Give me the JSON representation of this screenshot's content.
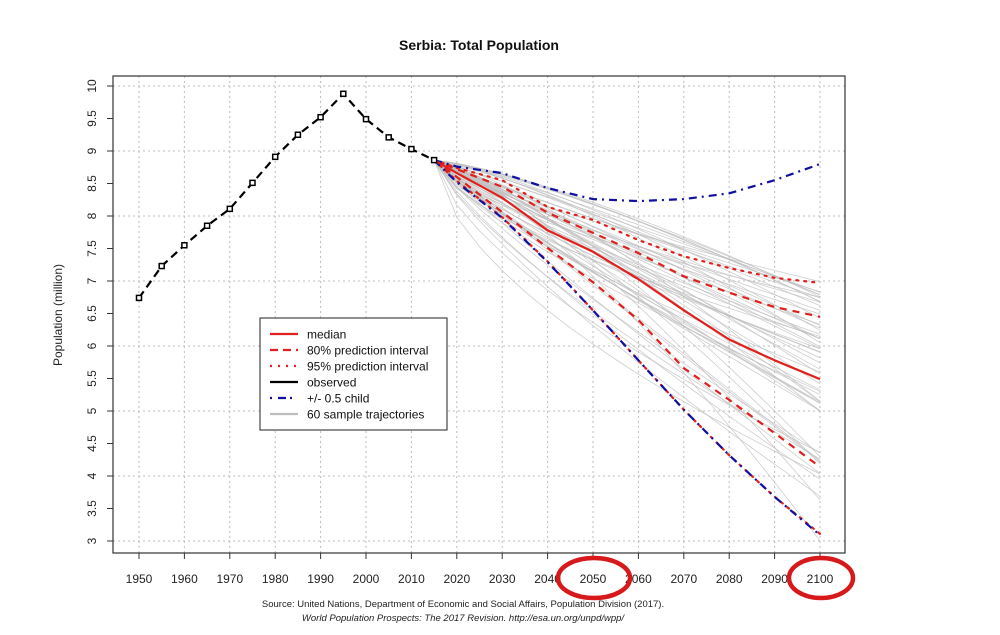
{
  "chart_data": {
    "type": "line",
    "title": "Serbia: Total Population",
    "xlabel": "",
    "ylabel": "Population (million)",
    "xlim": [
      1950,
      2100
    ],
    "ylim": [
      3,
      10
    ],
    "grid": true,
    "x_ticks": [
      1950,
      1960,
      1970,
      1980,
      1990,
      2000,
      2010,
      2020,
      2030,
      2040,
      2050,
      2060,
      2070,
      2080,
      2090,
      2100
    ],
    "x_tick_labels": [
      "1950",
      "1960",
      "1970",
      "1980",
      "1990",
      "2000",
      "2010",
      "2020",
      "2030",
      "2040",
      "2050",
      "2060",
      "2070",
      "2080",
      "2090",
      "2100"
    ],
    "y_ticks": [
      3,
      3.5,
      4,
      4.5,
      5,
      5.5,
      6,
      6.5,
      7,
      7.5,
      8,
      8.5,
      9,
      9.5,
      10
    ],
    "y_tick_labels": [
      "3",
      "3.5",
      "4",
      "4.5",
      "5",
      "5.5",
      "6",
      "6.5",
      "7",
      "7.5",
      "8",
      "8.5",
      "9",
      "9.5",
      "10"
    ],
    "legend_placement": "center-left",
    "legend": [
      {
        "label": "median",
        "color": "#e0201c",
        "style": "solid"
      },
      {
        "label": "80% prediction interval",
        "color": "#e0201c",
        "style": "dashed"
      },
      {
        "label": "95% prediction interval",
        "color": "#e0201c",
        "style": "dotted"
      },
      {
        "label": "observed",
        "color": "#000000",
        "style": "solid"
      },
      {
        "label": "+/- 0.5 child",
        "color": "#1010a0",
        "style": "dashdot"
      },
      {
        "label": "60 sample trajectories",
        "color": "#bdbdbd",
        "style": "solid"
      }
    ],
    "series": [
      {
        "name": "observed",
        "color": "#000000",
        "style": "dashed-points",
        "x": [
          1950,
          1955,
          1960,
          1965,
          1970,
          1975,
          1980,
          1985,
          1990,
          1995,
          2000,
          2005,
          2010,
          2015
        ],
        "values": [
          6.74,
          7.23,
          7.55,
          7.85,
          8.11,
          8.51,
          8.91,
          9.25,
          9.52,
          9.88,
          9.49,
          9.21,
          9.03,
          8.86
        ]
      },
      {
        "name": "median",
        "color": "#e0201c",
        "style": "solid",
        "x": [
          2015,
          2020,
          2030,
          2040,
          2050,
          2060,
          2070,
          2080,
          2090,
          2100
        ],
        "values": [
          8.86,
          8.66,
          8.28,
          7.78,
          7.45,
          7.03,
          6.55,
          6.1,
          5.78,
          5.49
        ]
      },
      {
        "name": "80% upper",
        "color": "#e0201c",
        "style": "dashed",
        "x": [
          2015,
          2020,
          2030,
          2040,
          2050,
          2060,
          2070,
          2080,
          2090,
          2100
        ],
        "values": [
          8.86,
          8.72,
          8.45,
          8.05,
          7.74,
          7.43,
          7.07,
          6.82,
          6.6,
          6.45
        ]
      },
      {
        "name": "80% lower",
        "color": "#e0201c",
        "style": "dashed",
        "x": [
          2015,
          2020,
          2030,
          2040,
          2050,
          2060,
          2070,
          2080,
          2090,
          2100
        ],
        "values": [
          8.86,
          8.6,
          8.06,
          7.51,
          6.98,
          6.4,
          5.66,
          5.17,
          4.66,
          4.14
        ]
      },
      {
        "name": "95% upper",
        "color": "#e0201c",
        "style": "dotted",
        "x": [
          2015,
          2020,
          2030,
          2040,
          2050,
          2060,
          2070,
          2080,
          2090,
          2100
        ],
        "values": [
          8.86,
          8.74,
          8.55,
          8.14,
          7.94,
          7.63,
          7.38,
          7.2,
          7.05,
          6.97
        ]
      },
      {
        "name": "95% lower",
        "color": "#e0201c",
        "style": "dotted",
        "x": [
          2015,
          2020,
          2030,
          2040,
          2050,
          2060,
          2070,
          2080,
          2090,
          2100
        ],
        "values": [
          8.86,
          8.54,
          7.98,
          7.3,
          6.55,
          5.78,
          5.02,
          4.32,
          3.68,
          3.11
        ]
      },
      {
        "name": "+0.5 child",
        "color": "#1010a0",
        "style": "dashdot",
        "x": [
          2015,
          2020,
          2030,
          2040,
          2050,
          2060,
          2070,
          2080,
          2090,
          2100
        ],
        "values": [
          8.86,
          8.76,
          8.66,
          8.43,
          8.26,
          8.23,
          8.26,
          8.35,
          8.55,
          8.8
        ]
      },
      {
        "name": "-0.5 child",
        "color": "#1010a0",
        "style": "dashdot",
        "x": [
          2015,
          2020,
          2030,
          2040,
          2050,
          2060,
          2070,
          2080,
          2090,
          2100
        ],
        "values": [
          8.86,
          8.52,
          7.97,
          7.29,
          6.55,
          5.78,
          5.02,
          4.32,
          3.68,
          3.09
        ]
      }
    ],
    "trajectories": {
      "name": "60 sample trajectories",
      "color": "#bdbdbd",
      "count": 60,
      "x": [
        2015,
        2030,
        2050,
        2070,
        2100
      ],
      "final_value_range": [
        3.0,
        7.0
      ]
    },
    "annotations": [
      {
        "type": "red-circle-highlight",
        "target": "x tick label 2050",
        "color": "#d7191c"
      },
      {
        "type": "red-circle-highlight",
        "target": "x tick label 2100",
        "color": "#d7191c"
      }
    ]
  },
  "source": {
    "line1": "Source: United Nations, Department of Economic and Social Affairs, Population Division (2017).",
    "line2": "World Population Prospects: The 2017 Revision. http://esa.un.org/unpd/wpp/"
  }
}
